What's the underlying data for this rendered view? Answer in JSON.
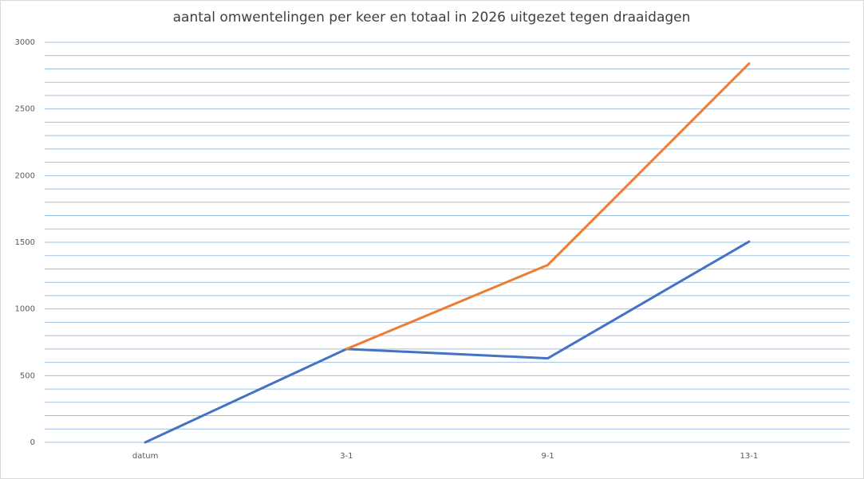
{
  "chart_data": {
    "type": "line",
    "title": "aantal omwentelingen per keer en totaal in 2026 uitgezet tegen draaidagen",
    "categories": [
      "datum",
      "3-1",
      "9-1",
      "13-1"
    ],
    "series": [
      {
        "color": "#4472c4",
        "values": [
          0,
          700,
          630,
          1505
        ]
      },
      {
        "color": "#ed7d31",
        "values": [
          null,
          700,
          1330,
          2840
        ]
      }
    ],
    "ylim": [
      0,
      3000
    ],
    "yticks": [
      0,
      500,
      1000,
      1500,
      2000,
      2500,
      3000
    ],
    "grid": true,
    "grid_step": 100
  }
}
